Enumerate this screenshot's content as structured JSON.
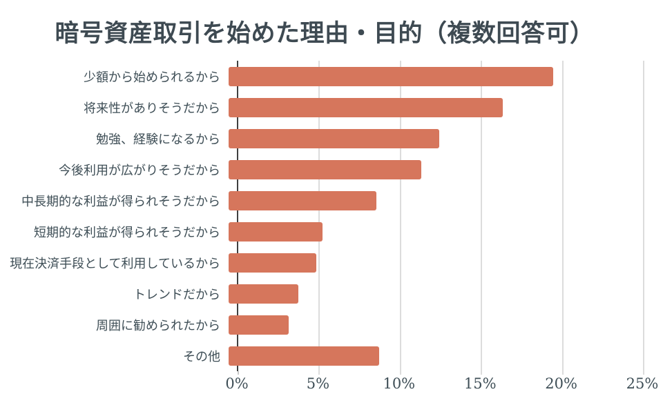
{
  "colors": {
    "bar": "#d6765c",
    "title_text": "#3e4a52",
    "label_text": "#3e4e56",
    "tick_text": "#3e4e56",
    "gridline": "#dcdcdc",
    "axis_line": "#3f3f3f",
    "background": "#ffffff"
  },
  "chart_data": {
    "type": "bar",
    "orientation": "horizontal",
    "title": "暗号資産取引を始めた理由・目的（複数回答可）",
    "categories": [
      "少額から始められるから",
      "将来性がありそうだから",
      "勉強、経験になるから",
      "今後利用が広がりそうだから",
      "中長期的な利益が得られそうだから",
      "短期的な利益が得られそうだから",
      "現在決済手段として利用しているから",
      "トレンドだから",
      "周囲に勧められたから",
      "その他"
    ],
    "values": [
      20.0,
      16.9,
      13.0,
      11.9,
      9.1,
      5.8,
      5.4,
      4.3,
      3.7,
      9.3
    ],
    "xlabel": "",
    "ylabel": "",
    "xlim": [
      0,
      25
    ],
    "xticks": [
      {
        "value": 0,
        "label": "0%"
      },
      {
        "value": 5,
        "label": "5%"
      },
      {
        "value": 10,
        "label": "10%"
      },
      {
        "value": 15,
        "label": "15%"
      },
      {
        "value": 20,
        "label": "20%"
      },
      {
        "value": 25,
        "label": "25%"
      }
    ],
    "grid": "vertical",
    "legend": false
  }
}
